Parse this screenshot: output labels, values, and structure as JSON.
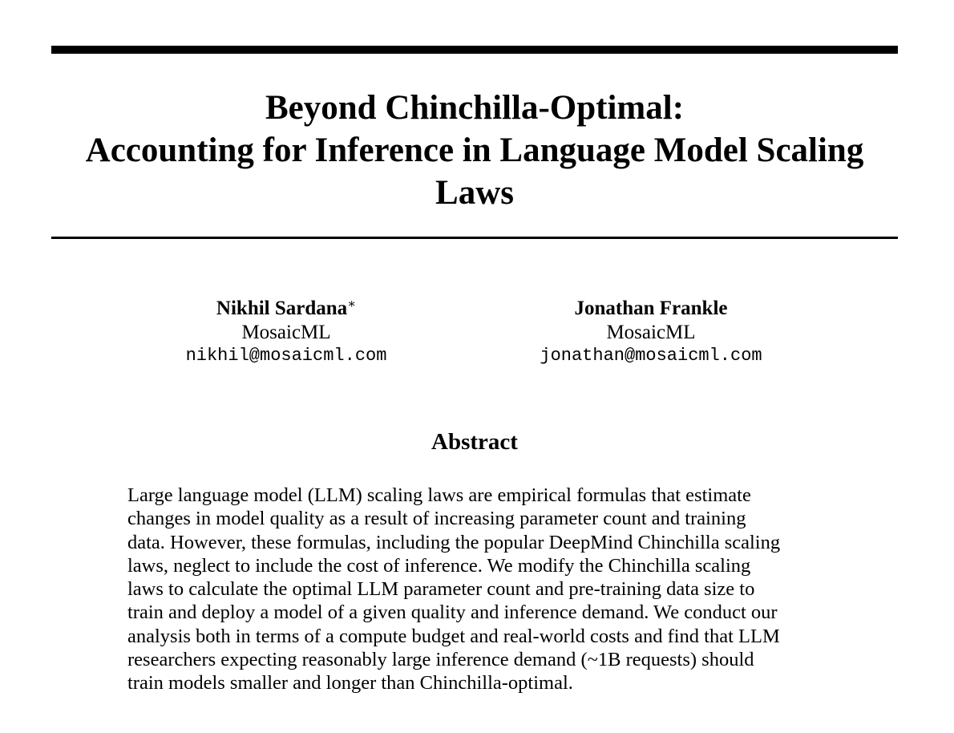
{
  "paper": {
    "title_lines": [
      "Beyond Chinchilla-Optimal:",
      "Accounting for Inference in Language Model Scaling",
      "Laws"
    ],
    "authors": [
      {
        "name": "Nikhil Sardana",
        "footnote_mark": "∗",
        "affiliation": "MosaicML",
        "email": "nikhil@mosaicml.com"
      },
      {
        "name": "Jonathan Frankle",
        "footnote_mark": "",
        "affiliation": "MosaicML",
        "email": "jonathan@mosaicml.com"
      }
    ],
    "abstract": {
      "heading": "Abstract",
      "lines": [
        "Large language model (LLM) scaling laws are empirical formulas that estimate",
        "changes in model quality as a result of increasing parameter count and training",
        "data. However, these formulas, including the popular DeepMind Chinchilla scaling",
        "laws, neglect to include the cost of inference. We modify the Chinchilla scaling",
        "laws to calculate the optimal LLM parameter count and pre-training data size to",
        "train and deploy a model of a given quality and inference demand. We conduct our",
        "analysis both in terms of a compute budget and real-world costs and find that LLM",
        "researchers expecting reasonably large inference demand (~1B requests) should",
        "train models smaller and longer than Chinchilla-optimal."
      ]
    }
  }
}
